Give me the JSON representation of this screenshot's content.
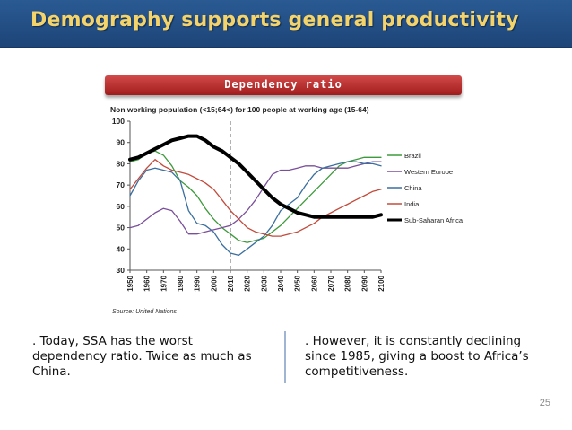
{
  "slide": {
    "title": "Demography supports general productivity",
    "banner": "Dependency ratio",
    "page_number": "25",
    "notes": {
      "left": ". Today, SSA has the worst dependency ratio. Twice as much as China.",
      "right": ". However, it is constantly declining since 1985, giving a boost to Africa’s competitiveness."
    },
    "colors": {
      "title_bar": "#1d4578",
      "title_text": "#f4d36a",
      "banner": "#b82a2a"
    }
  },
  "chart_data": {
    "type": "line",
    "title": "Non working population (<15;64<) for 100 people at working age (15-64)",
    "source": "Source: United Nations",
    "xlabel": "",
    "ylabel": "",
    "ylim": [
      30,
      100
    ],
    "yticks": [
      30,
      40,
      50,
      60,
      70,
      80,
      90,
      100
    ],
    "xlim": [
      1950,
      2100
    ],
    "xticks": [
      "1950",
      "1960",
      "1970",
      "1980",
      "1990",
      "2000",
      "2010",
      "2020",
      "2030",
      "2040",
      "2050",
      "2060",
      "2070",
      "2080",
      "2090",
      "2100"
    ],
    "marker_line_x": 2010,
    "legend_position": "right",
    "x": [
      1950,
      1955,
      1960,
      1965,
      1970,
      1975,
      1980,
      1985,
      1990,
      1995,
      2000,
      2005,
      2010,
      2015,
      2020,
      2025,
      2030,
      2035,
      2040,
      2045,
      2050,
      2055,
      2060,
      2065,
      2070,
      2075,
      2080,
      2085,
      2090,
      2095,
      2100
    ],
    "series": [
      {
        "name": "Brazil",
        "color": "#3d9a3b",
        "width": 1.3,
        "values": [
          81,
          82,
          85,
          86,
          84,
          79,
          72,
          69,
          65,
          59,
          54,
          50,
          47,
          44,
          43,
          44,
          45,
          48,
          51,
          55,
          59,
          63,
          67,
          71,
          75,
          79,
          81,
          82,
          83,
          83,
          83
        ]
      },
      {
        "name": "Western Europe",
        "color": "#7a4f9a",
        "width": 1.3,
        "values": [
          50,
          51,
          54,
          57,
          59,
          58,
          53,
          47,
          47,
          48,
          49,
          50,
          51,
          54,
          58,
          63,
          69,
          75,
          77,
          77,
          78,
          79,
          79,
          78,
          78,
          78,
          78,
          79,
          80,
          81,
          81
        ]
      },
      {
        "name": "China",
        "color": "#3a6f9f",
        "width": 1.3,
        "values": [
          65,
          72,
          77,
          78,
          77,
          76,
          72,
          58,
          52,
          51,
          48,
          42,
          38,
          37,
          40,
          43,
          46,
          51,
          58,
          61,
          64,
          70,
          75,
          78,
          79,
          80,
          81,
          81,
          80,
          80,
          79
        ]
      },
      {
        "name": "India",
        "color": "#c24a3a",
        "width": 1.3,
        "values": [
          68,
          73,
          78,
          82,
          79,
          77,
          76,
          75,
          73,
          71,
          68,
          63,
          58,
          54,
          50,
          48,
          47,
          46,
          46,
          47,
          48,
          50,
          52,
          55,
          57,
          59,
          61,
          63,
          65,
          67,
          68
        ]
      },
      {
        "name": "Sub-Saharan Africa",
        "color": "#000000",
        "width": 4,
        "values": [
          82,
          83,
          85,
          87,
          89,
          91,
          92,
          93,
          93,
          91,
          88,
          86,
          83,
          80,
          76,
          72,
          68,
          64,
          61,
          59,
          57,
          56,
          55,
          55,
          55,
          55,
          55,
          55,
          55,
          55,
          56
        ]
      }
    ]
  }
}
